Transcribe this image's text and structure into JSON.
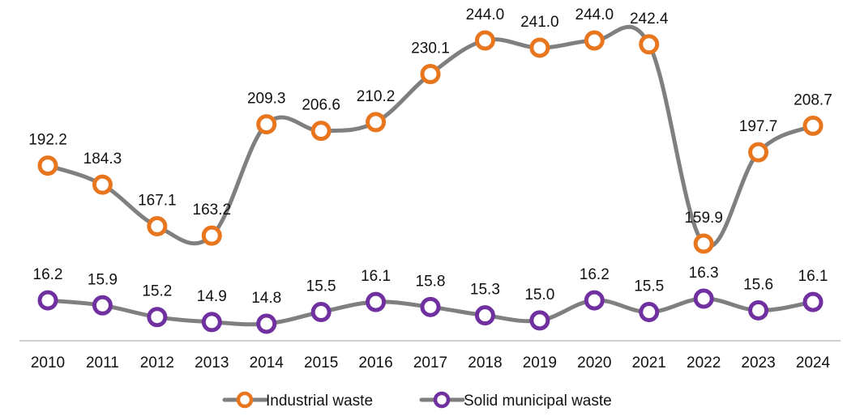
{
  "chart_data": {
    "type": "line",
    "categories": [
      "2010",
      "2011",
      "2012",
      "2013",
      "2014",
      "2015",
      "2016",
      "2017",
      "2018",
      "2019",
      "2020",
      "2021",
      "2022",
      "2023",
      "2024"
    ],
    "series": [
      {
        "name": "Industrial waste",
        "values": [
          192.2,
          184.3,
          167.1,
          163.2,
          209.3,
          206.6,
          210.2,
          230.1,
          244.0,
          241.0,
          244.0,
          242.4,
          159.9,
          197.7,
          208.7
        ],
        "labels": [
          "192.2",
          "184.3",
          "167.1",
          "163.2",
          "209.3",
          "206.6",
          "210.2",
          "230.1",
          "244.0",
          "241.0",
          "244.0",
          "242.4",
          "159.9",
          "197.7",
          "208.7"
        ],
        "marker_color": "#E8761E"
      },
      {
        "name": "Solid municipal waste",
        "values": [
          16.2,
          15.9,
          15.2,
          14.9,
          14.8,
          15.5,
          16.1,
          15.8,
          15.3,
          15.0,
          16.2,
          15.5,
          16.3,
          15.6,
          16.1
        ],
        "labels": [
          "16.2",
          "15.9",
          "15.2",
          "14.9",
          "14.8",
          "15.5",
          "16.1",
          "15.8",
          "15.3",
          "15.0",
          "16.2",
          "15.5",
          "16.3",
          "15.6",
          "16.1"
        ],
        "marker_color": "#7030A0"
      }
    ],
    "line_color": "#7F7F7F",
    "smooth": true,
    "data_labels": true,
    "legend_position": "bottom",
    "grid": false,
    "y_axis_visible": false,
    "x_axis_line": true
  }
}
